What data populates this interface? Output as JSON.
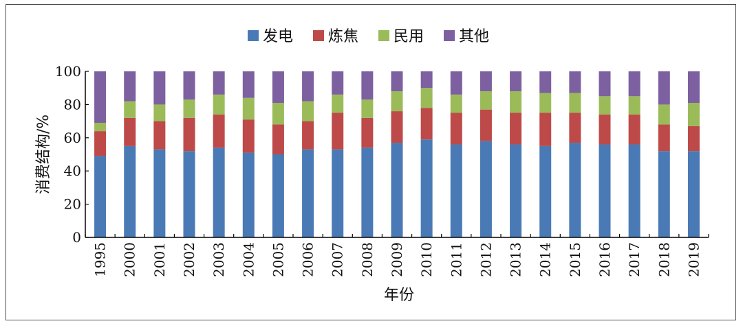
{
  "chart_data": {
    "type": "bar",
    "stacked": true,
    "title": "",
    "xlabel": "年份",
    "ylabel": "消费结构/%",
    "ylim": [
      0,
      100
    ],
    "yticks": [
      0,
      20,
      40,
      60,
      80,
      100
    ],
    "legend_position": "top-center",
    "grid": false,
    "categories": [
      "1995",
      "2000",
      "2001",
      "2002",
      "2003",
      "2004",
      "2005",
      "2006",
      "2007",
      "2008",
      "2009",
      "2010",
      "2011",
      "2012",
      "2013",
      "2014",
      "2015",
      "2016",
      "2017",
      "2018",
      "2019"
    ],
    "series": [
      {
        "name": "发电",
        "color": "#4a7ab5",
        "values": [
          49,
          55,
          53,
          52,
          54,
          51,
          50,
          53,
          53,
          54,
          57,
          59,
          56,
          58,
          56,
          55,
          57,
          56,
          56,
          52,
          52
        ]
      },
      {
        "name": "炼焦",
        "color": "#bd4a48",
        "values": [
          15,
          17,
          17,
          20,
          20,
          20,
          18,
          17,
          22,
          18,
          19,
          19,
          19,
          19,
          19,
          20,
          18,
          18,
          18,
          16,
          15
        ]
      },
      {
        "name": "民用",
        "color": "#9bbb59",
        "values": [
          5,
          10,
          10,
          11,
          12,
          13,
          13,
          12,
          11,
          11,
          12,
          12,
          11,
          11,
          13,
          12,
          12,
          11,
          11,
          12,
          14
        ]
      },
      {
        "name": "其他",
        "color": "#7d60a0",
        "values": [
          31,
          18,
          20,
          17,
          14,
          16,
          19,
          18,
          14,
          17,
          12,
          10,
          14,
          12,
          12,
          13,
          13,
          15,
          15,
          20,
          19
        ]
      }
    ]
  }
}
